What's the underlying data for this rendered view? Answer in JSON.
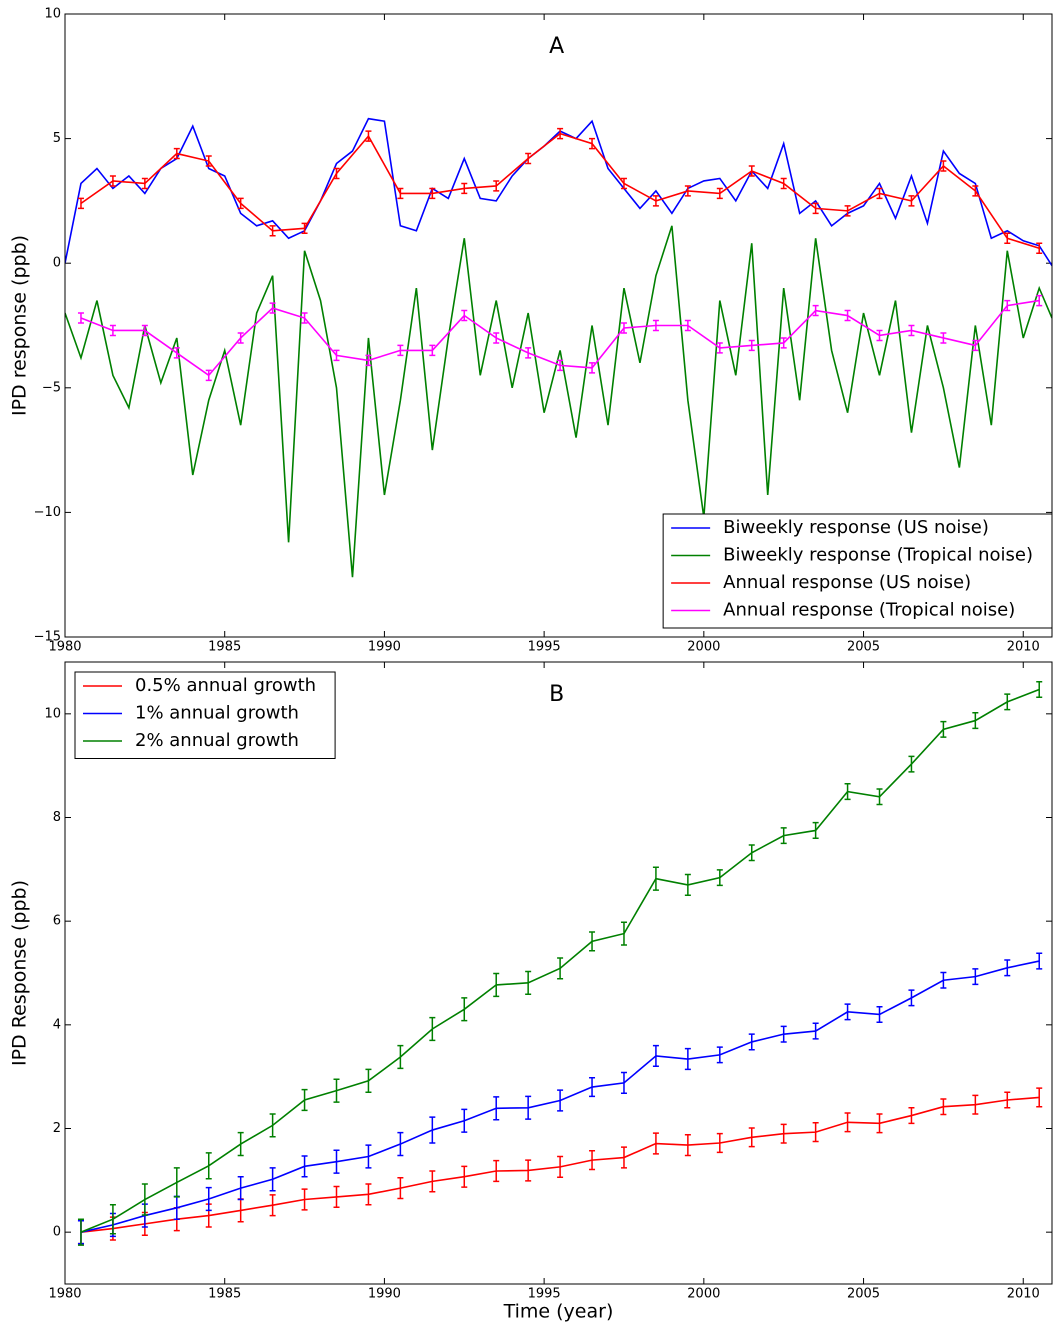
{
  "chart_data": [
    {
      "type": "line",
      "annotation": "A",
      "ylabel": "IPD response (ppb)",
      "xlim": [
        1980,
        2010.9
      ],
      "xticks": [
        1980,
        1985,
        1990,
        1995,
        2000,
        2005,
        2010
      ],
      "ylim": [
        -15,
        10
      ],
      "yticks": [
        {
          "value": -15,
          "label": "−15"
        },
        {
          "value": -10,
          "label": "−10"
        },
        {
          "value": -5,
          "label": "−5"
        },
        0,
        5,
        10
      ],
      "grid": false,
      "legend": "lower right",
      "series": [
        {
          "name": "Biweekly response (US noise)",
          "color": "#0000ff",
          "x": [
            1980.0,
            1980.5,
            1981.0,
            1981.5,
            1982.0,
            1982.5,
            1983.0,
            1983.5,
            1984.0,
            1984.5,
            1985.0,
            1985.5,
            1986.0,
            1986.5,
            1987.0,
            1987.5,
            1988.0,
            1988.5,
            1989.0,
            1989.5,
            1990.0,
            1990.5,
            1991.0,
            1991.5,
            1992.0,
            1992.5,
            1993.0,
            1993.5,
            1994.0,
            1994.5,
            1995.0,
            1995.5,
            1996.0,
            1996.5,
            1997.0,
            1997.5,
            1998.0,
            1998.5,
            1999.0,
            1999.5,
            2000.0,
            2000.5,
            2001.0,
            2001.5,
            2002.0,
            2002.5,
            2003.0,
            2003.5,
            2004.0,
            2004.5,
            2005.0,
            2005.5,
            2006.0,
            2006.5,
            2007.0,
            2007.5,
            2008.0,
            2008.5,
            2009.0,
            2009.5,
            2010.0,
            2010.5,
            2010.9
          ],
          "values": [
            0,
            3.2,
            3.8,
            3.0,
            3.5,
            2.8,
            3.8,
            4.2,
            5.5,
            3.8,
            3.5,
            2.0,
            1.5,
            1.7,
            1.0,
            1.3,
            2.5,
            4.0,
            4.5,
            5.8,
            5.7,
            1.5,
            1.3,
            3.0,
            2.6,
            4.2,
            2.6,
            2.5,
            3.5,
            4.2,
            4.7,
            5.3,
            5.0,
            5.7,
            3.8,
            3.0,
            2.2,
            2.9,
            2.0,
            3.0,
            3.3,
            3.4,
            2.5,
            3.7,
            3.0,
            4.8,
            2.0,
            2.5,
            1.5,
            2.0,
            2.3,
            3.2,
            1.8,
            3.5,
            1.6,
            4.5,
            3.6,
            3.2,
            1.0,
            1.3,
            0.9,
            0.7,
            -0.1
          ]
        },
        {
          "name": "Biweekly response (Tropical noise)",
          "color": "#008000",
          "x": [
            1980.0,
            1980.5,
            1981.0,
            1981.5,
            1982.0,
            1982.5,
            1983.0,
            1983.5,
            1984.0,
            1984.5,
            1985.0,
            1985.5,
            1986.0,
            1986.5,
            1987.0,
            1987.5,
            1988.0,
            1988.5,
            1989.0,
            1989.5,
            1990.0,
            1990.5,
            1991.0,
            1991.5,
            1992.0,
            1992.5,
            1993.0,
            1993.5,
            1994.0,
            1994.5,
            1995.0,
            1995.5,
            1996.0,
            1996.5,
            1997.0,
            1997.5,
            1998.0,
            1998.5,
            1999.0,
            1999.5,
            2000.0,
            2000.5,
            2001.0,
            2001.5,
            2002.0,
            2002.5,
            2003.0,
            2003.5,
            2004.0,
            2004.5,
            2005.0,
            2005.5,
            2006.0,
            2006.5,
            2007.0,
            2007.5,
            2008.0,
            2008.5,
            2009.0,
            2009.5,
            2010.0,
            2010.5,
            2010.9
          ],
          "values": [
            -2.0,
            -3.8,
            -1.5,
            -4.5,
            -5.8,
            -2.5,
            -4.8,
            -3.0,
            -8.5,
            -5.5,
            -3.5,
            -6.5,
            -2.0,
            -0.5,
            -11.2,
            0.5,
            -1.5,
            -5.0,
            -12.6,
            -3.0,
            -9.3,
            -5.5,
            -1.0,
            -7.5,
            -3.0,
            1.0,
            -4.5,
            -1.5,
            -5.0,
            -2.0,
            -6.0,
            -3.5,
            -7.0,
            -2.5,
            -6.5,
            -1.0,
            -4.0,
            -0.5,
            1.5,
            -5.5,
            -10.2,
            -1.5,
            -4.5,
            0.8,
            -9.3,
            -1.0,
            -5.5,
            1.0,
            -3.5,
            -6.0,
            -2.0,
            -4.5,
            -1.5,
            -6.8,
            -2.5,
            -5.0,
            -8.2,
            -2.5,
            -6.5,
            0.5,
            -3.0,
            -1.0,
            -2.2
          ]
        },
        {
          "name": "Annual response (US noise)",
          "color": "#ff0000",
          "x": [
            1980.5,
            1981.5,
            1982.5,
            1983.5,
            1984.5,
            1985.5,
            1986.5,
            1987.5,
            1988.5,
            1989.5,
            1990.5,
            1991.5,
            1992.5,
            1993.5,
            1994.5,
            1995.5,
            1996.5,
            1997.5,
            1998.5,
            1999.5,
            2000.5,
            2001.5,
            2002.5,
            2003.5,
            2004.5,
            2005.5,
            2006.5,
            2007.5,
            2008.5,
            2009.5,
            2010.5
          ],
          "values": [
            2.4,
            3.3,
            3.2,
            4.4,
            4.1,
            2.4,
            1.3,
            1.4,
            3.6,
            5.1,
            2.8,
            2.8,
            3.0,
            3.1,
            4.2,
            5.2,
            4.8,
            3.2,
            2.5,
            2.9,
            2.8,
            3.7,
            3.2,
            2.2,
            2.1,
            2.8,
            2.5,
            3.9,
            2.9,
            1.0,
            0.6
          ],
          "errors": [
            0.2,
            0.2,
            0.2,
            0.2,
            0.2,
            0.2,
            0.2,
            0.2,
            0.2,
            0.2,
            0.2,
            0.2,
            0.2,
            0.2,
            0.2,
            0.2,
            0.2,
            0.2,
            0.2,
            0.2,
            0.2,
            0.2,
            0.2,
            0.2,
            0.2,
            0.2,
            0.2,
            0.2,
            0.2,
            0.2,
            0.2
          ]
        },
        {
          "name": "Annual response (Tropical noise)",
          "color": "#ff00ff",
          "x": [
            1980.5,
            1981.5,
            1982.5,
            1983.5,
            1984.5,
            1985.5,
            1986.5,
            1987.5,
            1988.5,
            1989.5,
            1990.5,
            1991.5,
            1992.5,
            1993.5,
            1994.5,
            1995.5,
            1996.5,
            1997.5,
            1998.5,
            1999.5,
            2000.5,
            2001.5,
            2002.5,
            2003.5,
            2004.5,
            2005.5,
            2006.5,
            2007.5,
            2008.5,
            2009.5,
            2010.5
          ],
          "values": [
            -2.2,
            -2.7,
            -2.7,
            -3.6,
            -4.5,
            -3.0,
            -1.8,
            -2.2,
            -3.7,
            -3.9,
            -3.5,
            -3.5,
            -2.1,
            -3.0,
            -3.6,
            -4.1,
            -4.2,
            -2.6,
            -2.5,
            -2.5,
            -3.4,
            -3.3,
            -3.2,
            -1.9,
            -2.1,
            -2.9,
            -2.7,
            -3.0,
            -3.3,
            -1.7,
            -1.5
          ],
          "errors": [
            0.2,
            0.2,
            0.2,
            0.2,
            0.2,
            0.2,
            0.2,
            0.2,
            0.2,
            0.2,
            0.2,
            0.2,
            0.2,
            0.2,
            0.2,
            0.2,
            0.2,
            0.2,
            0.2,
            0.2,
            0.2,
            0.2,
            0.2,
            0.2,
            0.2,
            0.2,
            0.2,
            0.2,
            0.2,
            0.2,
            0.2
          ]
        }
      ]
    },
    {
      "type": "line",
      "annotation": "B",
      "ylabel": "IPD Response (ppb)",
      "xlabel": "Time (year)",
      "xlim": [
        1980,
        2010.9
      ],
      "xticks": [
        1980,
        1985,
        1990,
        1995,
        2000,
        2005,
        2010
      ],
      "ylim": [
        -1,
        11
      ],
      "yticks": [
        0,
        2,
        4,
        6,
        8,
        10
      ],
      "grid": false,
      "legend": "upper left",
      "series": [
        {
          "name": "0.5% annual growth",
          "color": "#ff0000",
          "x": [
            1980.5,
            1981.5,
            1982.5,
            1983.5,
            1984.5,
            1985.5,
            1986.5,
            1987.5,
            1988.5,
            1989.5,
            1990.5,
            1991.5,
            1992.5,
            1993.5,
            1994.5,
            1995.5,
            1996.5,
            1997.5,
            1998.5,
            1999.5,
            2000.5,
            2001.5,
            2002.5,
            2003.5,
            2004.5,
            2005.5,
            2006.5,
            2007.5,
            2008.5,
            2009.5,
            2010.5
          ],
          "values": [
            0,
            0.07,
            0.16,
            0.25,
            0.32,
            0.42,
            0.52,
            0.63,
            0.68,
            0.73,
            0.85,
            0.98,
            1.07,
            1.18,
            1.19,
            1.26,
            1.39,
            1.44,
            1.71,
            1.68,
            1.72,
            1.83,
            1.9,
            1.93,
            2.12,
            2.1,
            2.25,
            2.42,
            2.46,
            2.55,
            2.6
          ],
          "errors": [
            0.22,
            0.22,
            0.22,
            0.22,
            0.22,
            0.22,
            0.2,
            0.2,
            0.2,
            0.2,
            0.2,
            0.2,
            0.2,
            0.2,
            0.2,
            0.2,
            0.18,
            0.2,
            0.2,
            0.2,
            0.18,
            0.18,
            0.18,
            0.18,
            0.18,
            0.18,
            0.15,
            0.15,
            0.18,
            0.15,
            0.18
          ]
        },
        {
          "name": "1% annual growth",
          "color": "#0000ff",
          "x": [
            1980.5,
            1981.5,
            1982.5,
            1983.5,
            1984.5,
            1985.5,
            1986.5,
            1987.5,
            1988.5,
            1989.5,
            1990.5,
            1991.5,
            1992.5,
            1993.5,
            1994.5,
            1995.5,
            1996.5,
            1997.5,
            1998.5,
            1999.5,
            2000.5,
            2001.5,
            2002.5,
            2003.5,
            2004.5,
            2005.5,
            2006.5,
            2007.5,
            2008.5,
            2009.5,
            2010.5
          ],
          "values": [
            0,
            0.14,
            0.32,
            0.47,
            0.64,
            0.85,
            1.02,
            1.27,
            1.36,
            1.46,
            1.7,
            1.97,
            2.15,
            2.39,
            2.4,
            2.54,
            2.8,
            2.88,
            3.4,
            3.34,
            3.42,
            3.67,
            3.82,
            3.88,
            4.25,
            4.2,
            4.52,
            4.86,
            4.93,
            5.1,
            5.23
          ],
          "errors": [
            0.22,
            0.22,
            0.22,
            0.22,
            0.22,
            0.22,
            0.22,
            0.2,
            0.22,
            0.22,
            0.22,
            0.25,
            0.22,
            0.22,
            0.22,
            0.2,
            0.18,
            0.2,
            0.2,
            0.2,
            0.15,
            0.15,
            0.15,
            0.15,
            0.15,
            0.15,
            0.15,
            0.15,
            0.15,
            0.15,
            0.15
          ]
        },
        {
          "name": "2% annual growth",
          "color": "#008000",
          "x": [
            1980.5,
            1981.5,
            1982.5,
            1983.5,
            1984.5,
            1985.5,
            1986.5,
            1987.5,
            1988.5,
            1989.5,
            1990.5,
            1991.5,
            1992.5,
            1993.5,
            1994.5,
            1995.5,
            1996.5,
            1997.5,
            1998.5,
            1999.5,
            2000.5,
            2001.5,
            2002.5,
            2003.5,
            2004.5,
            2005.5,
            2006.5,
            2007.5,
            2008.5,
            2009.5,
            2010.5
          ],
          "values": [
            0,
            0.25,
            0.63,
            0.96,
            1.28,
            1.7,
            2.06,
            2.55,
            2.73,
            2.92,
            3.38,
            3.92,
            4.3,
            4.77,
            4.81,
            5.09,
            5.61,
            5.76,
            6.82,
            6.7,
            6.84,
            7.32,
            7.65,
            7.75,
            8.5,
            8.4,
            9.03,
            9.7,
            9.87,
            10.23,
            10.47
          ],
          "errors": [
            0.25,
            0.28,
            0.3,
            0.28,
            0.25,
            0.22,
            0.22,
            0.2,
            0.22,
            0.22,
            0.22,
            0.22,
            0.22,
            0.22,
            0.22,
            0.2,
            0.18,
            0.22,
            0.22,
            0.2,
            0.15,
            0.15,
            0.15,
            0.15,
            0.15,
            0.15,
            0.15,
            0.15,
            0.15,
            0.15,
            0.15
          ]
        }
      ]
    }
  ]
}
